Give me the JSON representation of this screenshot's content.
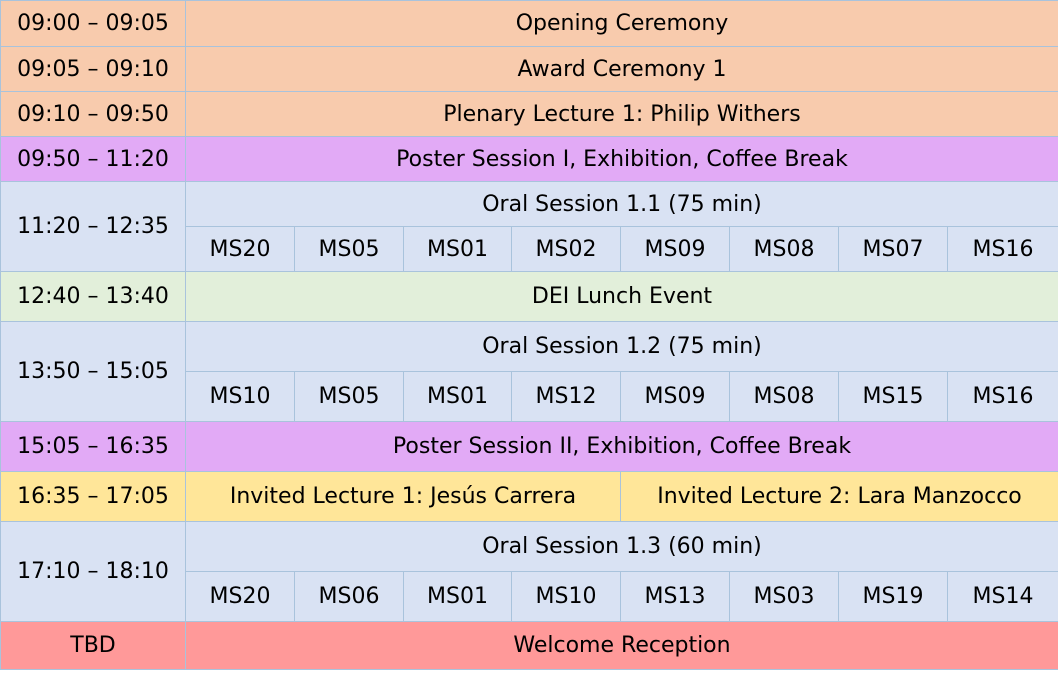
{
  "rows": [
    {
      "time": "09:00 – 09:05",
      "title": "Opening Ceremony"
    },
    {
      "time": "09:05 – 09:10",
      "title": "Award Ceremony 1"
    },
    {
      "time": "09:10 – 09:50",
      "title": "Plenary Lecture 1: Philip Withers"
    },
    {
      "time": "09:50 – 11:20",
      "title": "Poster Session I, Exhibition, Coffee Break"
    },
    {
      "time": "11:20 – 12:35",
      "title": "Oral Session 1.1 (75 min)",
      "sessions": [
        "MS20",
        "MS05",
        "MS01",
        "MS02",
        "MS09",
        "MS08",
        "MS07",
        "MS16"
      ]
    },
    {
      "time": "12:40 – 13:40",
      "title": "DEI Lunch Event"
    },
    {
      "time": "13:50 – 15:05",
      "title": "Oral Session 1.2 (75 min)",
      "sessions": [
        "MS10",
        "MS05",
        "MS01",
        "MS12",
        "MS09",
        "MS08",
        "MS15",
        "MS16"
      ]
    },
    {
      "time": "15:05 – 16:35",
      "title": "Poster Session II, Exhibition, Coffee Break"
    },
    {
      "time": "16:35 – 17:05",
      "lectures": [
        "Invited Lecture 1: Jesús Carrera",
        "Invited Lecture 2: Lara Manzocco"
      ]
    },
    {
      "time": "17:10 – 18:10",
      "title": "Oral Session 1.3 (60 min)",
      "sessions": [
        "MS20",
        "MS06",
        "MS01",
        "MS10",
        "MS13",
        "MS03",
        "MS19",
        "MS14"
      ]
    },
    {
      "time": "TBD",
      "title": "Welcome Reception"
    }
  ],
  "colors": {
    "ceremony": "#f8cbad",
    "poster": "#e2aaf6",
    "oral": "#d9e2f3",
    "lunch": "#e2efda",
    "invited": "#ffe699",
    "reception": "#ff9999",
    "border": "#a9c3dc"
  }
}
